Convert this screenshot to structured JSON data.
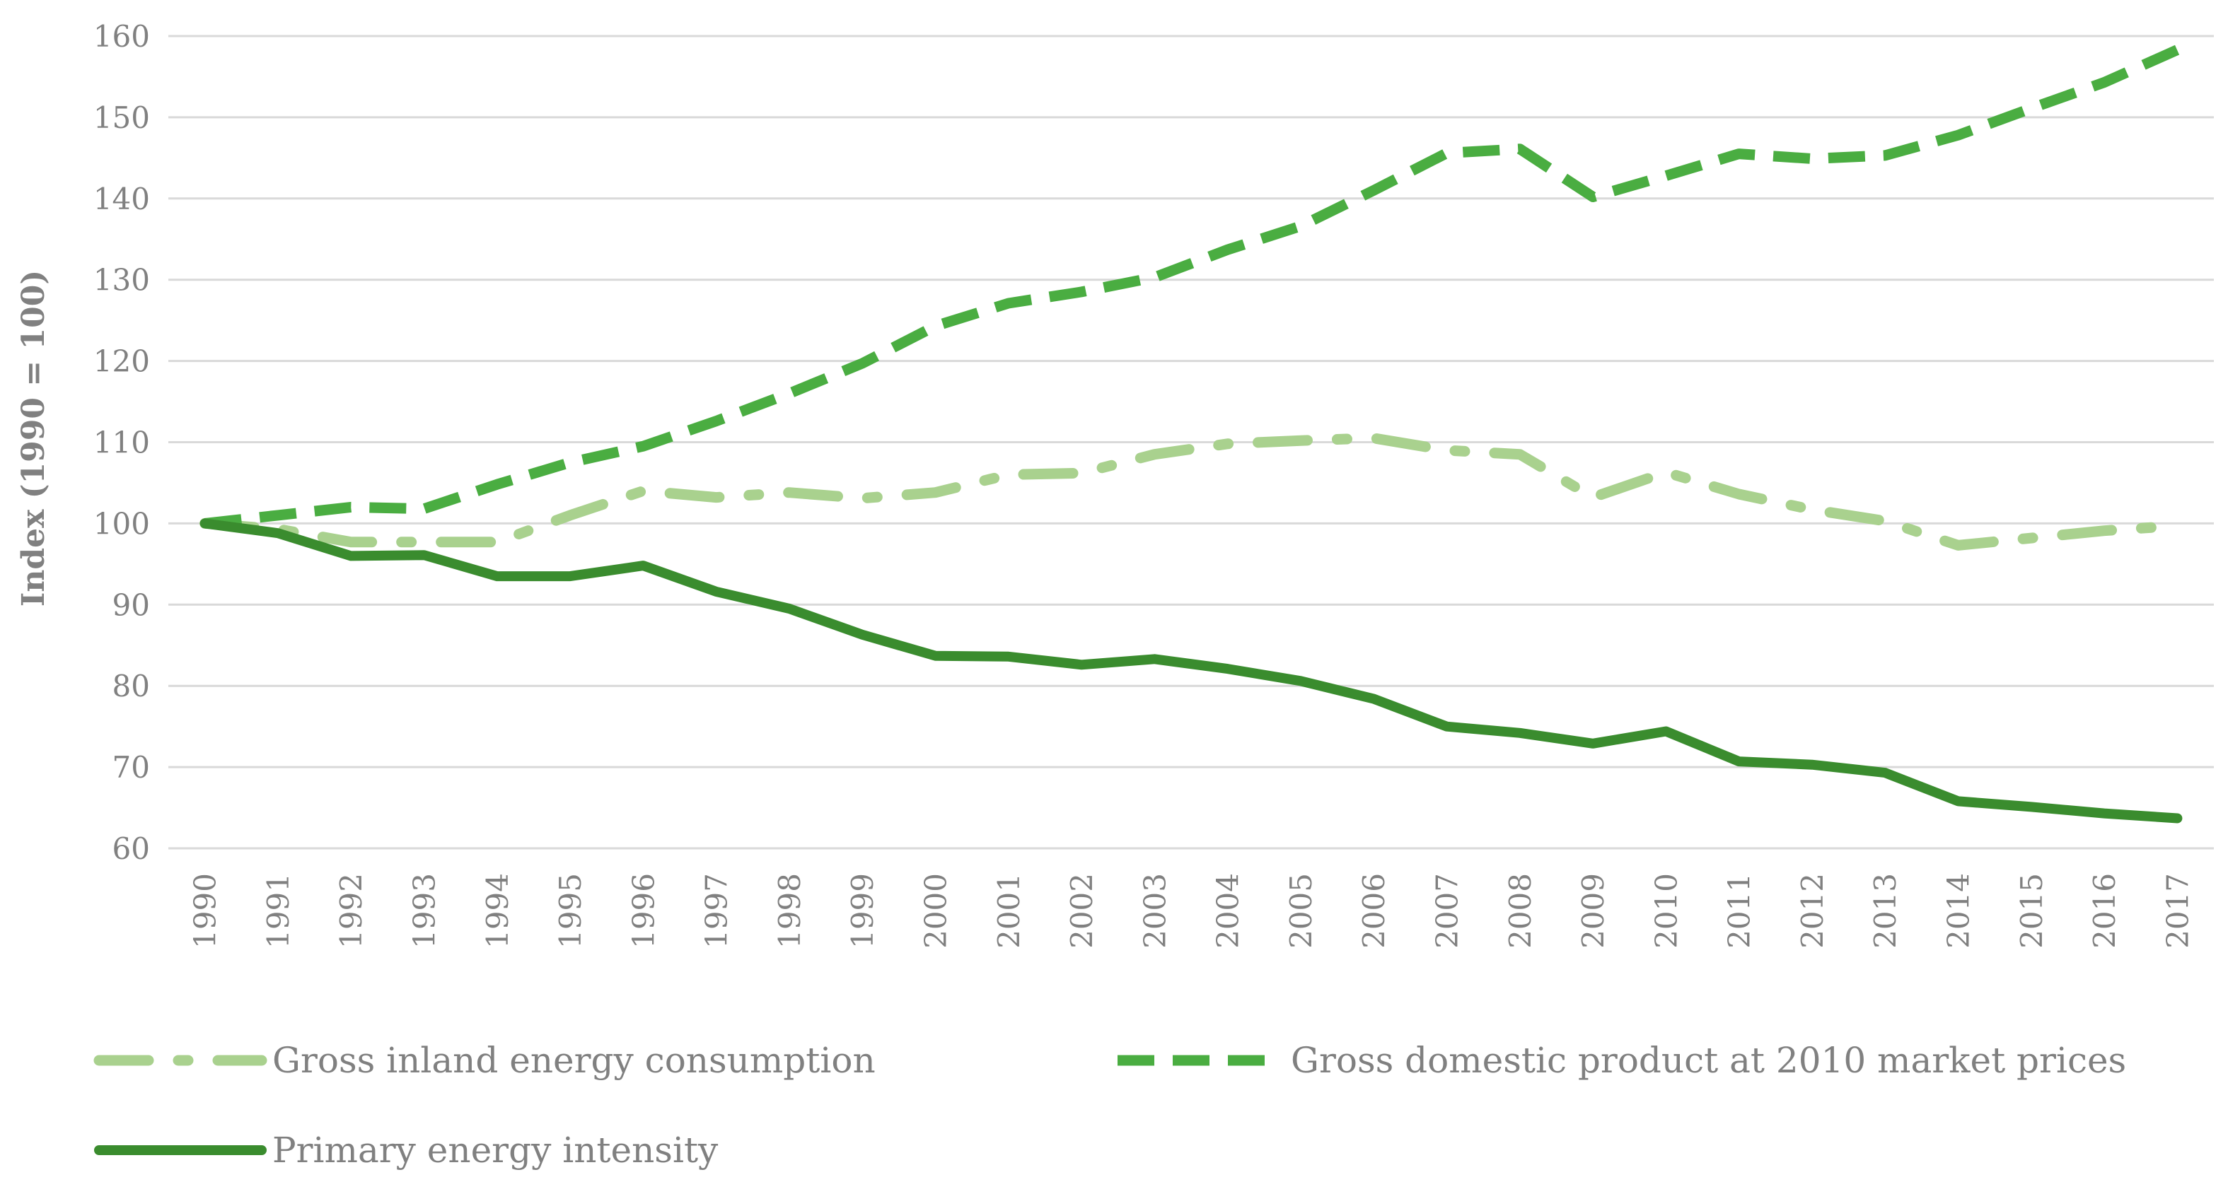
{
  "chart_data": {
    "type": "line",
    "title": "",
    "xlabel": "",
    "ylabel": "Index (1990 = 100)",
    "ylim": [
      60,
      160
    ],
    "yticks": [
      60,
      70,
      80,
      90,
      100,
      110,
      120,
      130,
      140,
      150,
      160
    ],
    "grid": true,
    "legend_position": "bottom",
    "categories": [
      "1990",
      "1991",
      "1992",
      "1993",
      "1994",
      "1995",
      "1996",
      "1997",
      "1998",
      "1999",
      "2000",
      "2001",
      "2002",
      "2003",
      "2004",
      "2005",
      "2006",
      "2007",
      "2008",
      "2009",
      "2010",
      "2011",
      "2012",
      "2013",
      "2014",
      "2015",
      "2016",
      "2017"
    ],
    "series": [
      {
        "name": "Gross inland energy consumption",
        "color": "#a9d18e",
        "style": "dash-dot",
        "values": [
          100,
          99.3,
          97.7,
          97.7,
          97.7,
          101,
          104,
          103.2,
          103.8,
          103.1,
          103.8,
          106,
          106.2,
          108.5,
          109.8,
          110.2,
          110.5,
          109,
          108.5,
          103.2,
          106.3,
          103.6,
          101.7,
          100.3,
          97.3,
          98.2,
          99.1,
          99.7
        ]
      },
      {
        "name": "Gross domestic product at 2010 market prices",
        "color": "#4aad41",
        "style": "dashed",
        "values": [
          100,
          101,
          102,
          101.8,
          104.8,
          107.5,
          109.5,
          112.6,
          116,
          119.7,
          124.3,
          127.1,
          128.5,
          130.3,
          133.7,
          136.6,
          141,
          145.6,
          146.1,
          140.2,
          142.8,
          145.5,
          144.9,
          145.3,
          147.8,
          151.1,
          154.3,
          158.3
        ]
      },
      {
        "name": "Primary energy intensity",
        "color": "#3a8c2e",
        "style": "solid",
        "values": [
          100,
          98.8,
          96,
          96.1,
          93.5,
          93.5,
          94.8,
          91.6,
          89.5,
          86.3,
          83.7,
          83.6,
          82.6,
          83.3,
          82.1,
          80.6,
          78.4,
          75,
          74.2,
          72.9,
          74.4,
          70.7,
          70.3,
          69.3,
          65.8,
          65.1,
          64.3,
          63.7
        ]
      }
    ]
  }
}
